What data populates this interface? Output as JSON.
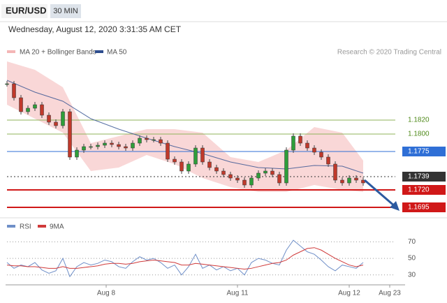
{
  "chart_data": [
    {
      "type": "candlestick",
      "title": "EUR/USD",
      "timeframe": "30 MIN",
      "subtitle": "Wednesday, August 12, 2020 3:31:35 AM CET",
      "source": "Research © 2020 Trading Central",
      "closes": [
        1.1872,
        1.1852,
        1.1832,
        1.1837,
        1.1842,
        1.1827,
        1.1817,
        1.1812,
        1.1832,
        1.1767,
        1.1777,
        1.1782,
        1.1782,
        1.1784,
        1.1787,
        1.1785,
        1.1782,
        1.178,
        1.1787,
        1.1794,
        1.1792,
        1.1792,
        1.1787,
        1.1764,
        1.176,
        1.1747,
        1.1757,
        1.178,
        1.176,
        1.1752,
        1.1747,
        1.1742,
        1.1737,
        1.1734,
        1.1727,
        1.1737,
        1.1744,
        1.1747,
        1.1742,
        1.173,
        1.1777,
        1.1797,
        1.1787,
        1.178,
        1.1774,
        1.1767,
        1.1757,
        1.1734,
        1.173,
        1.1737,
        1.1734,
        1.173
      ],
      "up_color": "#2e9e3a",
      "down_color": "#c0392b",
      "bands": {
        "name": "MA 20 + Bollinger Bands",
        "color": "#f4b6b6",
        "x": [
          0,
          4,
          8,
          12,
          16,
          20,
          24,
          28,
          32,
          36,
          40,
          44,
          48,
          51
        ],
        "upper": [
          1.1904,
          1.1892,
          1.1867,
          1.1787,
          1.1797,
          1.1807,
          1.1807,
          1.1802,
          1.1767,
          1.176,
          1.1777,
          1.181,
          1.1802,
          1.1762
        ],
        "lower": [
          1.1842,
          1.1822,
          1.1802,
          1.1747,
          1.1752,
          1.177,
          1.1757,
          1.1737,
          1.1724,
          1.1717,
          1.1717,
          1.1727,
          1.172,
          1.1717
        ]
      },
      "ma50": {
        "name": "MA 50",
        "color": "#2e4d8e",
        "x": [
          0,
          4,
          8,
          12,
          16,
          20,
          24,
          28,
          32,
          36,
          40,
          44,
          48,
          51
        ],
        "values": [
          1.1877,
          1.186,
          1.1847,
          1.1822,
          1.1807,
          1.1794,
          1.1782,
          1.1772,
          1.176,
          1.1752,
          1.175,
          1.1755,
          1.1754,
          1.1744
        ]
      },
      "levels": [
        {
          "value": 1.182,
          "label": "1.1820",
          "color": "#8fb35a",
          "style": "solid",
          "box": false
        },
        {
          "value": 1.18,
          "label": "1.1800",
          "color": "#8fb35a",
          "style": "solid",
          "box": false
        },
        {
          "value": 1.1775,
          "label": "1.1775",
          "color": "#2f6fd6",
          "style": "solid",
          "box": true
        },
        {
          "value": 1.1739,
          "label": "1.1739",
          "color": "#333333",
          "style": "dotted",
          "box": true
        },
        {
          "value": 1.172,
          "label": "1.1720",
          "color": "#d01818",
          "style": "solid",
          "box": true
        },
        {
          "value": 1.1695,
          "label": "1.1695",
          "color": "#d01818",
          "style": "solid",
          "box": true
        }
      ],
      "xlim": [
        0,
        57
      ],
      "ylim": [
        1.1684,
        1.1907
      ]
    },
    {
      "type": "line",
      "series": [
        {
          "name": "RSI",
          "color": "#6f8fc8",
          "values": [
            45,
            38,
            42,
            40,
            45,
            36,
            32,
            35,
            50,
            28,
            40,
            45,
            42,
            44,
            48,
            46,
            40,
            38,
            46,
            52,
            48,
            50,
            45,
            38,
            42,
            30,
            40,
            55,
            38,
            42,
            36,
            40,
            35,
            38,
            30,
            45,
            50,
            48,
            44,
            42,
            60,
            72,
            65,
            58,
            55,
            48,
            40,
            35,
            42,
            40,
            38,
            45
          ]
        },
        {
          "name": "9MA",
          "color": "#d03a3a",
          "values": [
            42,
            41,
            41,
            40,
            40,
            39,
            38,
            38,
            40,
            38,
            38,
            39,
            40,
            41,
            43,
            44,
            44,
            43,
            44,
            46,
            47,
            48,
            47,
            46,
            45,
            42,
            42,
            44,
            43,
            42,
            41,
            40,
            39,
            38,
            37,
            38,
            40,
            42,
            44,
            45,
            48,
            54,
            58,
            62,
            63,
            60,
            55,
            50,
            46,
            42,
            40,
            42
          ]
        }
      ],
      "yticks": [
        30,
        50,
        70
      ],
      "ylim": [
        18,
        94
      ],
      "xlim": [
        0,
        57
      ],
      "xticks": [
        {
          "value": 14.2,
          "label": "Aug 8"
        },
        {
          "value": 33,
          "label": "Aug 11"
        },
        {
          "value": 49,
          "label": "Aug 12"
        },
        {
          "value": 54.8,
          "label": "Aug 23"
        }
      ]
    }
  ]
}
